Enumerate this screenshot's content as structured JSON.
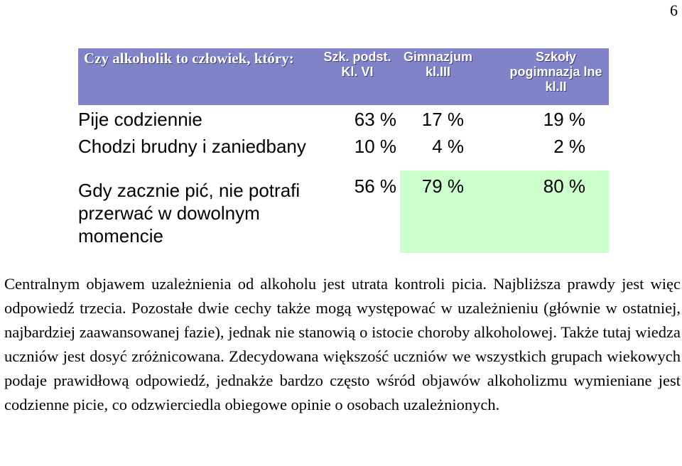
{
  "page_number": "6",
  "table": {
    "headers": {
      "question": "Czy alkoholik to człowiek, który:",
      "col_a": "Szk. podst. Kl. VI",
      "col_b": "Gimnazjum kl.III",
      "col_c": "Szkoły pogimnazja lne kl.II"
    },
    "rows": [
      {
        "label": "Pije codziennie",
        "a": "63 %",
        "b": "17 %",
        "c": "19 %"
      },
      {
        "label": "Chodzi brudny i zaniedbany",
        "a": "10 %",
        "b": "4 %",
        "c": "2 %"
      },
      {
        "label": "Gdy zacznie pić, nie potrafi przerwać w dowolnym momencie",
        "a": "56 %",
        "b": "79 %",
        "c": "80 %"
      }
    ],
    "colors": {
      "header_bg": "#8282c8",
      "highlight_bg": "#ccffcc"
    }
  },
  "paragraph": "Centralnym objawem uzależnienia od alkoholu jest utrata kontroli picia. Najbliższa prawdy jest więc odpowiedź trzecia. Pozostałe dwie cechy także mogą występować w uzależnieniu (głównie w ostatniej, najbardziej zaawansowanej fazie), jednak nie stanowią o istocie choroby alkoholowej. Także tutaj wiedza uczniów jest dosyć zróżnicowana. Zdecydowana większość uczniów we wszystkich grupach wiekowych podaje prawidłową odpowiedź, jednakże bardzo często wśród objawów alkoholizmu wymieniane jest codzienne picie, co odzwierciedla obiegowe opinie o osobach uzależnionych."
}
